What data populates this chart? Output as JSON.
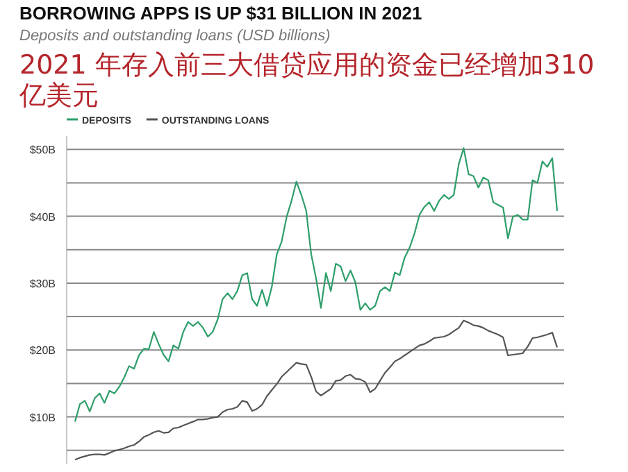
{
  "chart_data": {
    "type": "line",
    "title": "BORROWING APPS IS UP $31 BILLION IN 2021",
    "subtitle": "Deposits and outstanding loans (USD billions)",
    "annotations": [
      "2021 年存入前三大借贷应用的资金已经增加310 亿美元"
    ],
    "categories": [
      null,
      null,
      null,
      null,
      null,
      null,
      null,
      null,
      null,
      null,
      null,
      null,
      null,
      null,
      null,
      null,
      null,
      null,
      null,
      null,
      null,
      null,
      null,
      null,
      null,
      null,
      null,
      null,
      null,
      null,
      null,
      null,
      null,
      null,
      null,
      null,
      null,
      null,
      null,
      null,
      null,
      null,
      null,
      null,
      null,
      null,
      null,
      null,
      null,
      null,
      null,
      null,
      null,
      null,
      null,
      null,
      null,
      null,
      null,
      null,
      null,
      null,
      null,
      null,
      null,
      null,
      null,
      null,
      null,
      null,
      null,
      null,
      null,
      null,
      null,
      null,
      null,
      null,
      null,
      null,
      null,
      null,
      null,
      null,
      null,
      null,
      null,
      null,
      null,
      null,
      null,
      null,
      null,
      null,
      null,
      null,
      null,
      null,
      null
    ],
    "series": [
      {
        "name": "DEPOSITS",
        "color": "#2e9e6a",
        "values": [
          9.3,
          11.9,
          12.4,
          10.8,
          12.8,
          13.5,
          12.1,
          13.9,
          13.5,
          14.5,
          15.9,
          17.6,
          17.2,
          19.2,
          20.2,
          20.1,
          22.7,
          20.9,
          19.3,
          18.3,
          20.7,
          20.2,
          22.7,
          24.2,
          23.6,
          24.2,
          23.3,
          22.0,
          22.7,
          24.6,
          27.6,
          28.5,
          27.6,
          28.8,
          31.2,
          31.5,
          27.6,
          26.6,
          29.0,
          26.6,
          29.4,
          34.3,
          36.2,
          39.9,
          42.3,
          45.2,
          43.2,
          40.8,
          34.3,
          30.7,
          26.3,
          31.5,
          28.8,
          32.9,
          32.5,
          30.3,
          31.9,
          30.1,
          26.0,
          27.0,
          26.0,
          26.6,
          28.8,
          29.4,
          28.8,
          31.6,
          31.2,
          33.8,
          35.3,
          37.4,
          40.2,
          41.4,
          42.1,
          40.8,
          42.3,
          43.2,
          42.6,
          43.2,
          47.8,
          50.2,
          46.3,
          46.0,
          44.3,
          45.8,
          45.4,
          42.1,
          41.7,
          41.3,
          36.7,
          39.9,
          40.2,
          39.5,
          39.5,
          45.4,
          45.0,
          48.2,
          47.4,
          48.7,
          40.8
        ]
      },
      {
        "name": "OUTSTANDING LOANS",
        "color": "#555555",
        "values": [
          3.6,
          3.9,
          4.1,
          4.3,
          4.4,
          4.4,
          4.3,
          4.6,
          4.9,
          5.1,
          5.3,
          5.6,
          5.8,
          6.3,
          7.0,
          7.3,
          7.7,
          7.9,
          7.6,
          7.7,
          8.3,
          8.4,
          8.7,
          9.0,
          9.3,
          9.6,
          9.6,
          9.7,
          9.9,
          10.0,
          10.7,
          11.1,
          11.2,
          11.5,
          12.4,
          12.2,
          10.9,
          11.2,
          11.8,
          13.1,
          14.0,
          14.9,
          16.0,
          16.7,
          17.4,
          18.1,
          17.9,
          17.8,
          16.0,
          13.8,
          13.2,
          13.7,
          14.2,
          15.4,
          15.5,
          16.1,
          16.3,
          15.7,
          15.6,
          15.2,
          13.7,
          14.2,
          15.4,
          16.6,
          17.4,
          18.3,
          18.7,
          19.2,
          19.7,
          20.2,
          20.7,
          20.9,
          21.3,
          21.8,
          21.9,
          22.0,
          22.3,
          22.8,
          23.3,
          24.4,
          24.1,
          23.7,
          23.6,
          23.3,
          22.9,
          22.6,
          22.3,
          21.9,
          19.2,
          19.3,
          19.4,
          19.5,
          20.5,
          21.8,
          21.9,
          22.1,
          22.3,
          22.6,
          20.4
        ]
      }
    ],
    "ylim": [
      3,
      52
    ],
    "yticks": [
      {
        "value": 5,
        "label": null
      },
      {
        "value": 10,
        "label": "$10B"
      },
      {
        "value": 15,
        "label": null
      },
      {
        "value": 20,
        "label": "$20B"
      },
      {
        "value": 25,
        "label": null
      },
      {
        "value": 30,
        "label": "$30B"
      },
      {
        "value": 35,
        "label": null
      },
      {
        "value": 40,
        "label": "$40B"
      },
      {
        "value": 45,
        "label": null
      },
      {
        "value": 50,
        "label": "$50B"
      }
    ],
    "grid": true,
    "legend": "top left",
    "marker": "none",
    "line_style": "solid"
  }
}
